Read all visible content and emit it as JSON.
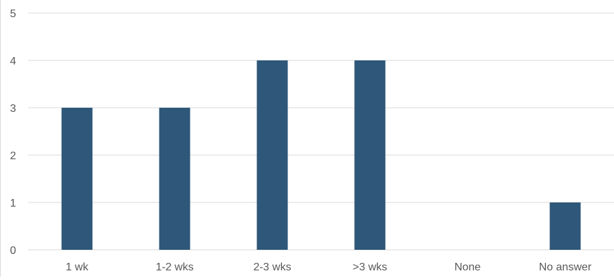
{
  "chart_data": {
    "type": "bar",
    "title": "",
    "xlabel": "",
    "ylabel": "",
    "categories": [
      "1 wk",
      "1-2 wks",
      "2-3 wks",
      ">3 wks",
      "None",
      "No answer"
    ],
    "values": [
      3,
      3,
      4,
      4,
      0,
      1
    ],
    "ylim": [
      0,
      5
    ],
    "yticks": [
      0,
      1,
      2,
      3,
      4,
      5
    ],
    "grid": true,
    "legend": "none",
    "colors": {
      "bar": "#2e5779",
      "grid": "#d9d9d9",
      "text": "#595959"
    }
  }
}
